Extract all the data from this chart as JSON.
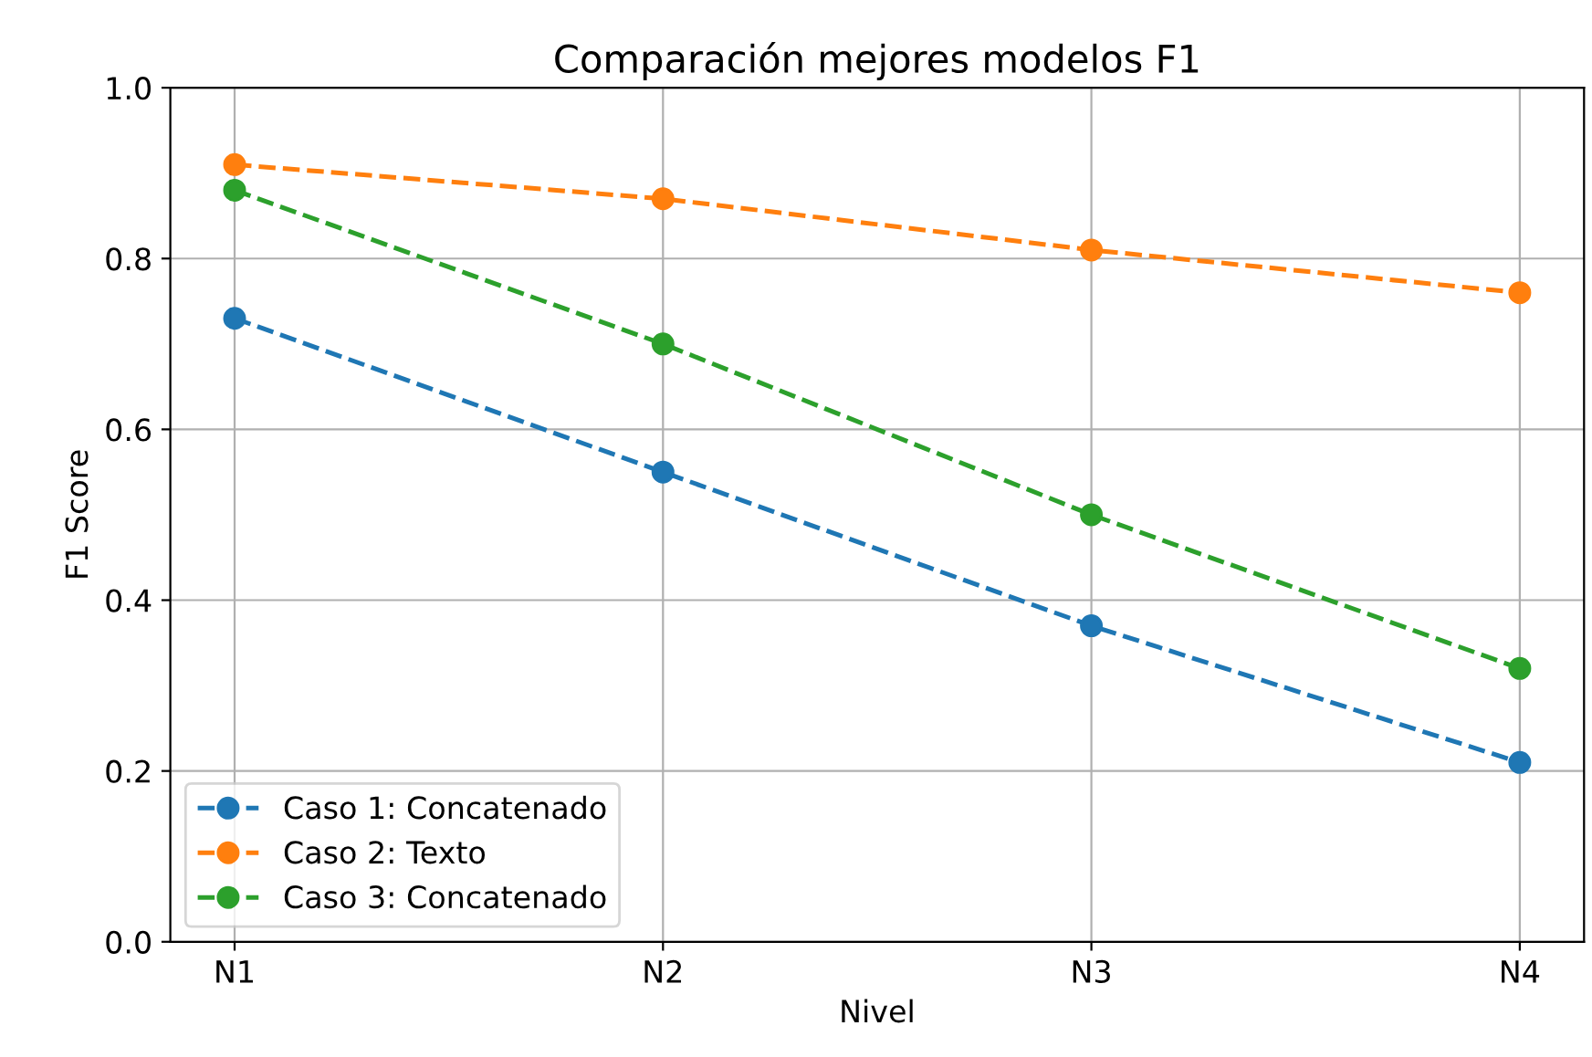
{
  "chart_data": {
    "type": "line",
    "title": "Comparación mejores modelos F1",
    "xlabel": "Nivel",
    "ylabel": "F1 Score",
    "categories": [
      "N1",
      "N2",
      "N3",
      "N4"
    ],
    "series": [
      {
        "name": "Caso 1: Concatenado",
        "color": "#1f77b4",
        "values": [
          0.73,
          0.55,
          0.37,
          0.21
        ]
      },
      {
        "name": "Caso 2: Texto",
        "color": "#ff7f0e",
        "values": [
          0.91,
          0.87,
          0.81,
          0.76
        ]
      },
      {
        "name": "Caso 3: Concatenado",
        "color": "#2ca02c",
        "values": [
          0.88,
          0.7,
          0.5,
          0.32
        ]
      }
    ],
    "ylim": [
      0.0,
      1.0
    ],
    "yticks": [
      {
        "value": 0,
        "label": "0.0"
      },
      0.2,
      0.4,
      0.6,
      0.8,
      {
        "value": 1,
        "label": "1.0"
      }
    ],
    "grid": true,
    "legend": "bottom left",
    "marker": "circle",
    "line_style": "dashed"
  }
}
